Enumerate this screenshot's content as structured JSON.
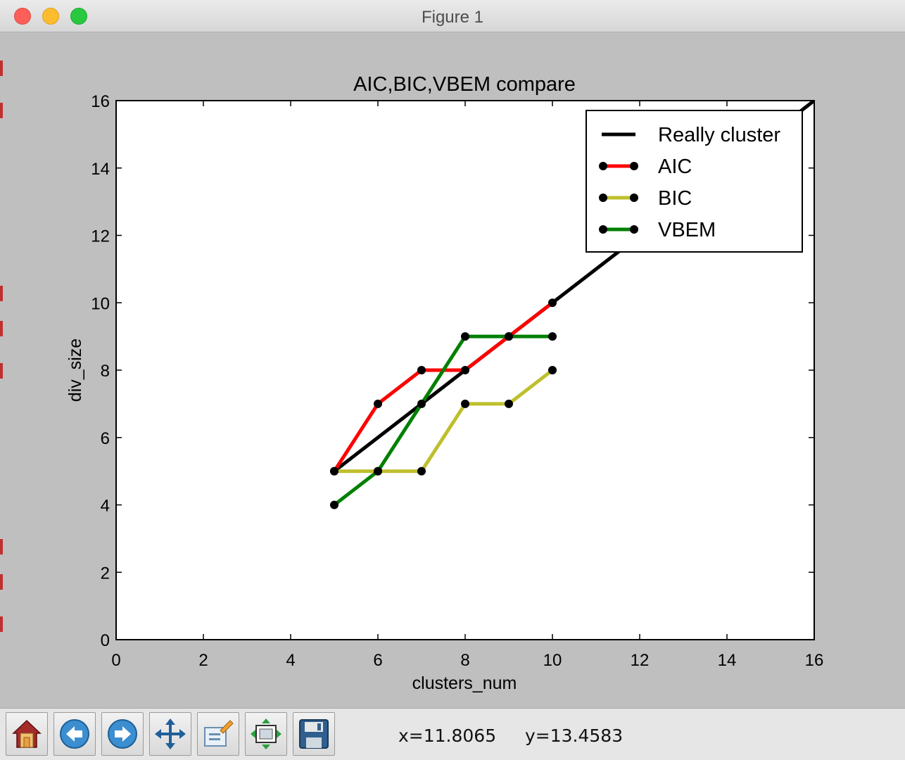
{
  "window": {
    "title": "Figure 1"
  },
  "toolbar": {
    "buttons": [
      {
        "name": "home-button",
        "icon": "home-icon"
      },
      {
        "name": "back-button",
        "icon": "back-arrow-icon"
      },
      {
        "name": "forward-button",
        "icon": "forward-arrow-icon"
      },
      {
        "name": "pan-button",
        "icon": "move-arrows-icon"
      },
      {
        "name": "zoom-button",
        "icon": "zoom-rect-icon"
      },
      {
        "name": "subplots-button",
        "icon": "subplots-icon"
      },
      {
        "name": "save-button",
        "icon": "floppy-disk-icon"
      }
    ],
    "x_readout": "x=11.8065",
    "y_readout": "y=13.4583"
  },
  "chart_data": {
    "type": "line",
    "title": "AIC,BIC,VBEM compare",
    "xlabel": "clusters_num",
    "ylabel": "div_size",
    "xlim": [
      0,
      16
    ],
    "ylim": [
      0,
      16
    ],
    "xticks": [
      "0",
      "2",
      "4",
      "6",
      "8",
      "10",
      "12",
      "14",
      "16"
    ],
    "yticks": [
      "0",
      "2",
      "4",
      "6",
      "8",
      "10",
      "12",
      "14",
      "16"
    ],
    "grid": false,
    "legend_position": "top-right",
    "series": [
      {
        "name": "Really cluster",
        "color": "#000000",
        "markers": false,
        "x": [
          5,
          16
        ],
        "y": [
          5,
          16
        ]
      },
      {
        "name": "AIC",
        "color": "#ff0000",
        "markers": true,
        "x": [
          5,
          6,
          7,
          8,
          9,
          10
        ],
        "y": [
          5,
          7,
          8,
          8,
          9,
          10
        ]
      },
      {
        "name": "BIC",
        "color": "#bfbf2e",
        "markers": true,
        "x": [
          5,
          6,
          7,
          8,
          9,
          10
        ],
        "y": [
          5,
          5,
          5,
          7,
          7,
          8
        ]
      },
      {
        "name": "VBEM",
        "color": "#008000",
        "markers": true,
        "x": [
          5,
          6,
          7,
          8,
          9,
          10
        ],
        "y": [
          4,
          5,
          7,
          9,
          9,
          9
        ]
      }
    ]
  }
}
